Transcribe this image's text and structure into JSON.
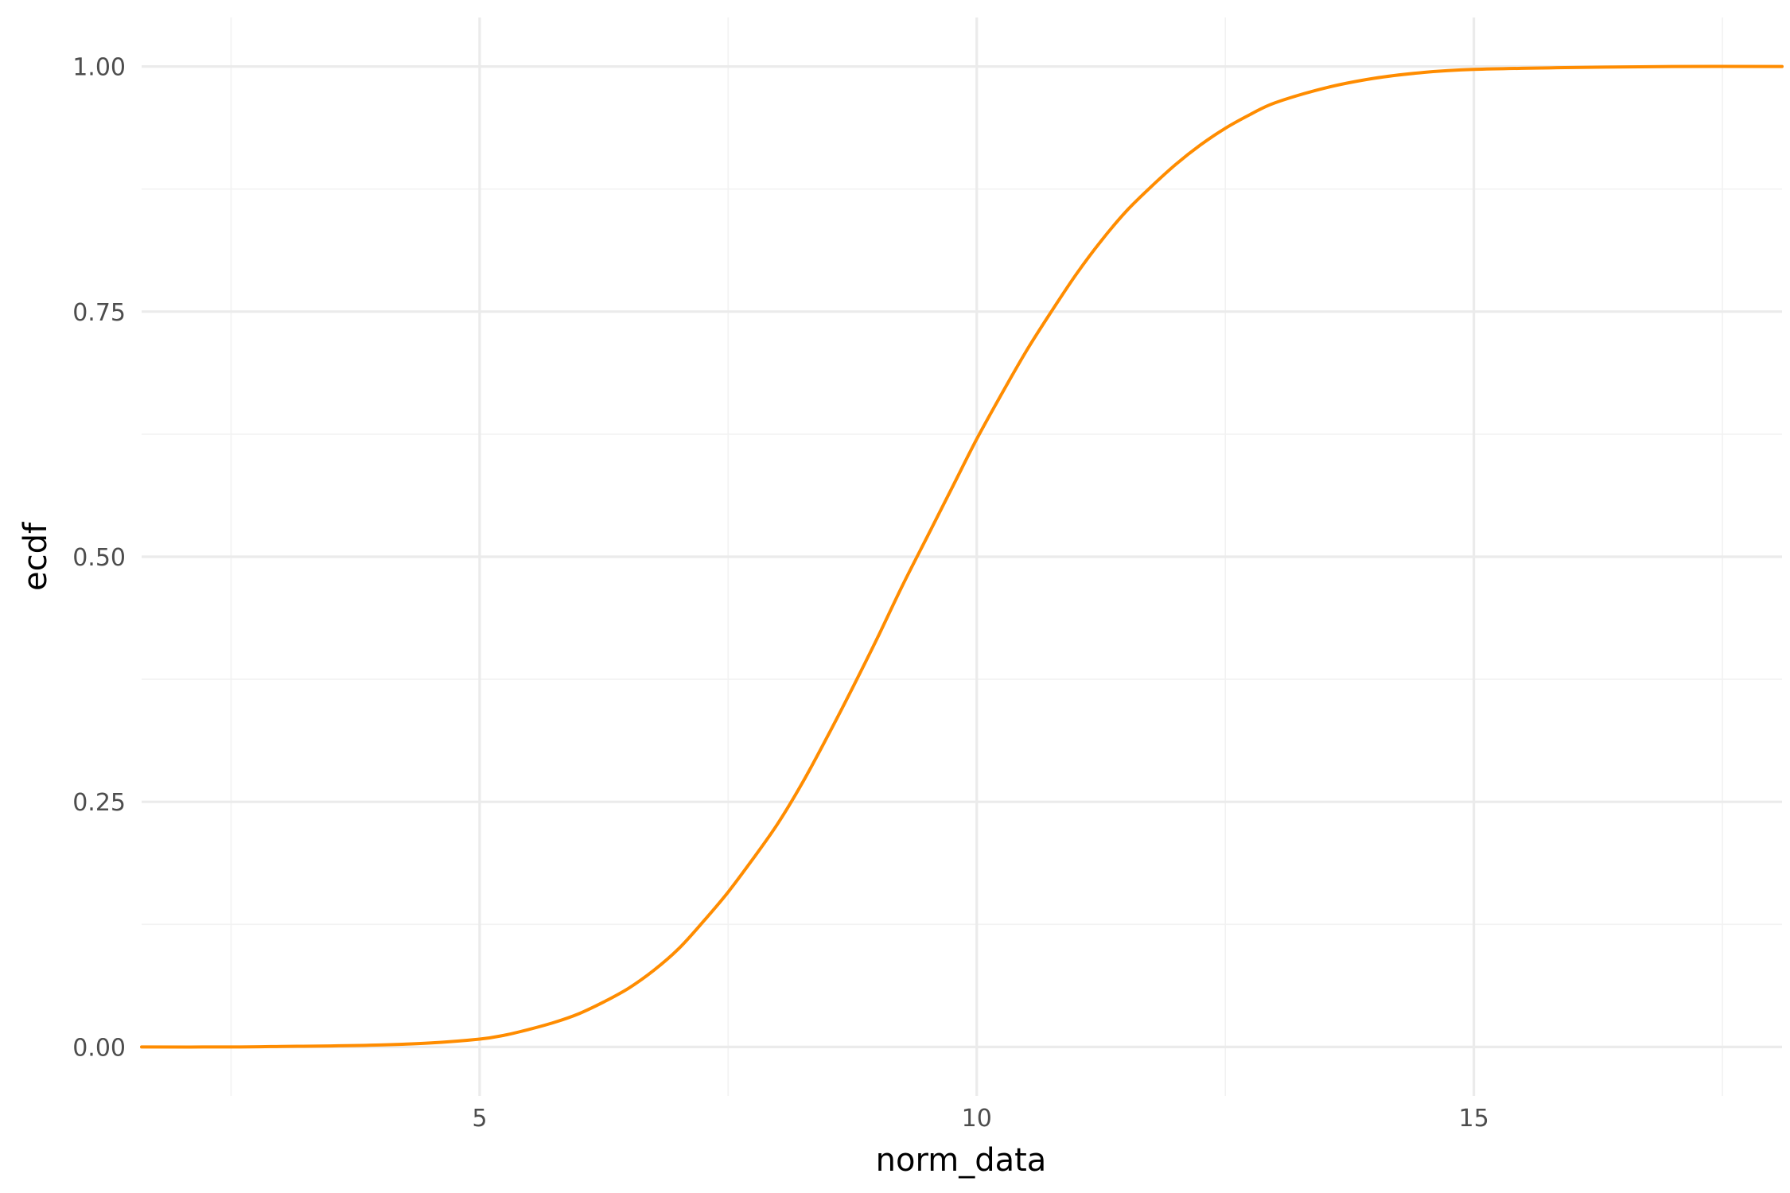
{
  "chart_data": {
    "type": "line",
    "title": "",
    "xlabel": "norm_data",
    "ylabel": "ecdf",
    "xlim": [
      1.6,
      18.1
    ],
    "ylim": [
      -0.05,
      1.05
    ],
    "x_ticks": [
      5,
      10,
      15
    ],
    "x_tick_labels": [
      "5",
      "10",
      "15"
    ],
    "x_minor_ticks": [
      2.5,
      7.5,
      12.5,
      17.5
    ],
    "y_ticks": [
      0,
      0.25,
      0.5,
      0.75,
      1
    ],
    "y_tick_labels": [
      "0.00",
      "0.25",
      "0.50",
      "0.75",
      "1.00"
    ],
    "y_minor_ticks": [
      0.125,
      0.375,
      0.625,
      0.875
    ],
    "grid": true,
    "legend": "none",
    "line_color": "#ff8c00",
    "series": [
      {
        "x": [
          1.6,
          2.5,
          3.0,
          3.5,
          4.0,
          4.5,
          5.0,
          5.25,
          5.5,
          5.75,
          6.0,
          6.25,
          6.5,
          6.75,
          7.0,
          7.25,
          7.5,
          7.75,
          8.0,
          8.25,
          8.5,
          8.75,
          9.0,
          9.25,
          9.5,
          9.75,
          10.0,
          10.25,
          10.5,
          10.75,
          11.0,
          11.25,
          11.5,
          11.75,
          12.0,
          12.25,
          12.5,
          12.75,
          13.0,
          13.5,
          14.0,
          14.5,
          15.0,
          16.0,
          17.0,
          18.1
        ],
        "y": [
          0.0,
          0.0,
          0.0005,
          0.001,
          0.002,
          0.004,
          0.008,
          0.012,
          0.018,
          0.025,
          0.034,
          0.046,
          0.06,
          0.078,
          0.1,
          0.128,
          0.158,
          0.192,
          0.228,
          0.27,
          0.317,
          0.366,
          0.417,
          0.47,
          0.52,
          0.57,
          0.62,
          0.666,
          0.71,
          0.75,
          0.788,
          0.822,
          0.852,
          0.877,
          0.9,
          0.92,
          0.937,
          0.951,
          0.963,
          0.978,
          0.988,
          0.994,
          0.997,
          0.999,
          1.0,
          1.0
        ]
      }
    ]
  }
}
